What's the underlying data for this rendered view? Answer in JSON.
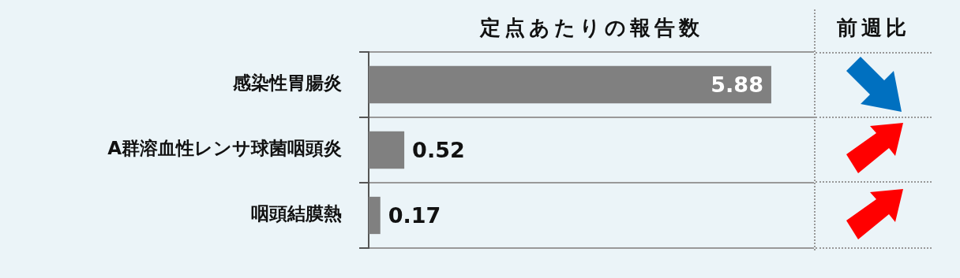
{
  "chart_data": {
    "type": "bar",
    "orientation": "horizontal",
    "title": "定点あたりの報告数",
    "categories": [
      "感染性胃腸炎",
      "A群溶血性レンサ球菌咽頭炎",
      "咽頭結膜熱"
    ],
    "values": [
      5.88,
      0.52,
      0.17
    ],
    "color": "#808080",
    "data_labels": true,
    "grid": "y",
    "legend": false,
    "annotations": [
      "前週比"
    ]
  }
}
